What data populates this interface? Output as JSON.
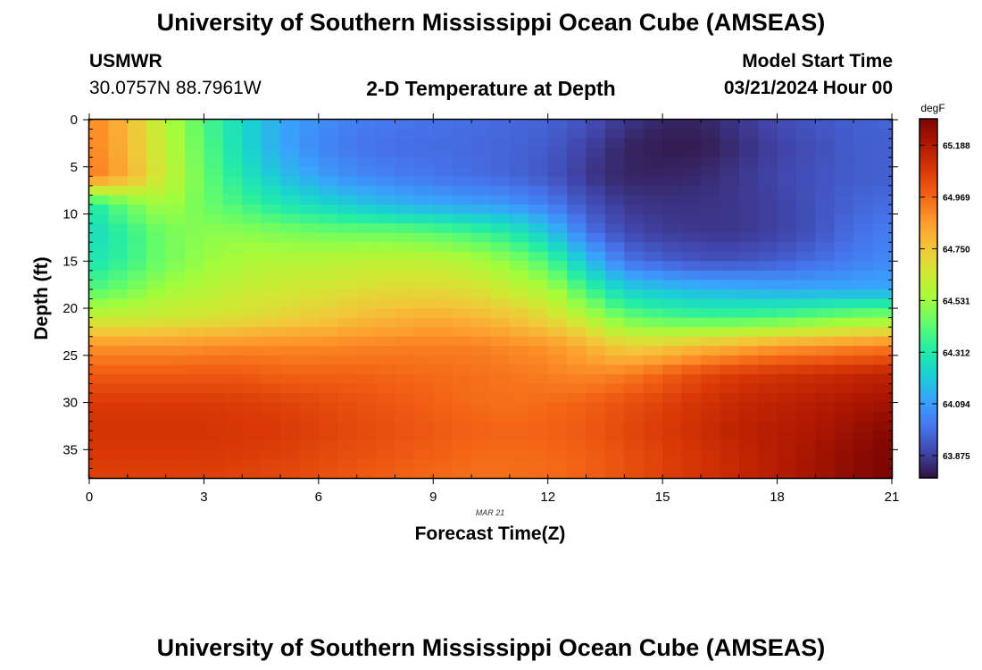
{
  "header": {
    "title": "University of Southern Mississippi Ocean Cube (AMSEAS)",
    "station": "USMWR",
    "coords": "30.0757N  88.7961W",
    "subtitle": "2-D Temperature at Depth",
    "model_label": "Model Start Time",
    "model_time": "03/21/2024 Hour 00"
  },
  "footer": {
    "title": "University of Southern Mississippi Ocean Cube (AMSEAS)"
  },
  "colorbar": {
    "unit": "degF",
    "labels": [
      "65.188",
      "64.969",
      "64.750",
      "64.531",
      "64.312",
      "64.094",
      "63.875"
    ],
    "label_values": [
      65.188,
      64.969,
      64.75,
      64.531,
      64.312,
      64.094,
      63.875
    ],
    "vmin": 63.78,
    "vmax": 65.3,
    "stops": [
      "#30123b",
      "#4145ab",
      "#4675ed",
      "#39a2fc",
      "#1bcfd4",
      "#24eca6",
      "#61fc6c",
      "#a4fc3b",
      "#d1e834",
      "#f3c63a",
      "#fe9b2d",
      "#f36315",
      "#d93806",
      "#b11901",
      "#7a0402"
    ]
  },
  "chart_data": {
    "type": "heatmap",
    "title": "2-D Temperature at Depth",
    "xlabel": "Forecast Time(Z)",
    "ylabel": "Depth (ft)",
    "date_label": "MAR 21",
    "xlim": [
      0,
      21
    ],
    "ylim": [
      38,
      0
    ],
    "xticks": [
      0,
      3,
      6,
      9,
      12,
      15,
      18,
      21
    ],
    "yticks": [
      0,
      5,
      10,
      15,
      20,
      25,
      30,
      35
    ],
    "units": "degF",
    "anchor_times": [
      0,
      1,
      2,
      3,
      4,
      5,
      6,
      7,
      8,
      9,
      10,
      11,
      12,
      13,
      14,
      15,
      16,
      17,
      18,
      19,
      20,
      21
    ],
    "anchor_depths": [
      0,
      3,
      6,
      9,
      12,
      15,
      18,
      21,
      24,
      27,
      30,
      33,
      36,
      38
    ],
    "anchor_values": [
      [
        64.92,
        64.78,
        64.58,
        64.4,
        64.25,
        64.12,
        64.06,
        64.02,
        64.0,
        63.99,
        63.98,
        63.97,
        63.96,
        63.92,
        63.86,
        63.82,
        63.82,
        63.86,
        63.9,
        63.93,
        63.95,
        63.96
      ],
      [
        64.92,
        64.8,
        64.6,
        64.42,
        64.25,
        64.12,
        64.04,
        64.0,
        63.98,
        63.98,
        63.97,
        63.96,
        63.94,
        63.88,
        63.82,
        63.8,
        63.8,
        63.84,
        63.88,
        63.91,
        63.94,
        63.95
      ],
      [
        64.94,
        64.82,
        64.62,
        64.44,
        64.3,
        64.18,
        64.1,
        64.05,
        64.02,
        64.0,
        63.98,
        63.96,
        63.93,
        63.86,
        63.82,
        63.82,
        63.83,
        63.86,
        63.89,
        63.92,
        63.94,
        63.95
      ],
      [
        64.3,
        64.45,
        64.55,
        64.45,
        64.38,
        64.3,
        64.25,
        64.2,
        64.15,
        64.12,
        64.1,
        64.08,
        64.02,
        63.92,
        63.86,
        63.85,
        63.85,
        63.86,
        63.88,
        63.92,
        63.96,
        63.98
      ],
      [
        64.25,
        64.35,
        64.46,
        64.5,
        64.5,
        64.48,
        64.46,
        64.45,
        64.45,
        64.42,
        64.38,
        64.32,
        64.2,
        64.0,
        63.9,
        63.87,
        63.86,
        63.86,
        63.88,
        63.92,
        63.98,
        64.02
      ],
      [
        64.28,
        64.36,
        64.46,
        64.52,
        64.56,
        64.58,
        64.58,
        64.6,
        64.6,
        64.6,
        64.57,
        64.5,
        64.4,
        64.18,
        64.0,
        63.95,
        63.92,
        63.92,
        63.94,
        63.98,
        64.02,
        64.05
      ],
      [
        64.4,
        64.46,
        64.54,
        64.58,
        64.62,
        64.64,
        64.66,
        64.68,
        64.7,
        64.7,
        64.68,
        64.62,
        64.56,
        64.38,
        64.22,
        64.18,
        64.15,
        64.14,
        64.12,
        64.12,
        64.12,
        64.12
      ],
      [
        64.62,
        64.62,
        64.64,
        64.66,
        64.68,
        64.72,
        64.74,
        64.78,
        64.8,
        64.82,
        64.8,
        64.76,
        64.7,
        64.58,
        64.45,
        64.4,
        64.38,
        64.38,
        64.4,
        64.44,
        64.48,
        64.5
      ],
      [
        64.88,
        64.88,
        64.88,
        64.89,
        64.9,
        64.9,
        64.9,
        64.91,
        64.92,
        64.92,
        64.92,
        64.9,
        64.88,
        64.82,
        64.72,
        64.74,
        64.78,
        64.82,
        64.86,
        64.88,
        64.9,
        64.92
      ],
      [
        65.0,
        65.0,
        65.0,
        65.0,
        65.0,
        64.98,
        64.98,
        64.98,
        64.97,
        64.96,
        64.95,
        64.94,
        64.92,
        64.9,
        64.92,
        64.98,
        65.04,
        65.08,
        65.1,
        65.12,
        65.14,
        65.16
      ],
      [
        65.08,
        65.08,
        65.08,
        65.08,
        65.07,
        65.06,
        65.04,
        65.02,
        65.0,
        64.98,
        64.96,
        64.95,
        64.96,
        64.98,
        65.02,
        65.06,
        65.1,
        65.14,
        65.16,
        65.18,
        65.2,
        65.22
      ],
      [
        65.1,
        65.1,
        65.1,
        65.1,
        65.09,
        65.08,
        65.06,
        65.04,
        65.02,
        65.0,
        64.98,
        64.97,
        64.98,
        65.0,
        65.04,
        65.08,
        65.12,
        65.16,
        65.18,
        65.2,
        65.24,
        65.28
      ],
      [
        65.08,
        65.08,
        65.08,
        65.08,
        65.07,
        65.06,
        65.04,
        65.02,
        65.0,
        64.98,
        64.96,
        64.96,
        64.96,
        64.98,
        65.02,
        65.06,
        65.1,
        65.14,
        65.18,
        65.22,
        65.26,
        65.3
      ],
      [
        65.06,
        65.06,
        65.06,
        65.06,
        65.05,
        65.04,
        65.02,
        65.0,
        64.98,
        64.96,
        64.95,
        64.95,
        64.96,
        64.98,
        65.02,
        65.06,
        65.1,
        65.14,
        65.18,
        65.22,
        65.26,
        65.3
      ]
    ]
  }
}
